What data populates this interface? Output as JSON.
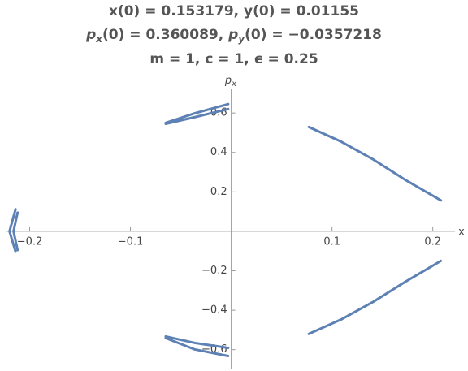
{
  "chart_data": {
    "type": "line",
    "title": [
      [
        "x(0) = 0.153179, y(0) = 0.01155"
      ],
      [
        "p",
        "x",
        "(0) = 0.360089, ",
        "p",
        "y",
        "(0) = −0.0357218"
      ],
      [
        "m = 1, c = 1, ϵ = 0.25"
      ]
    ],
    "x_label": "x",
    "y_label": [
      "p",
      "x"
    ],
    "xlim": [
      -0.223,
      0.222
    ],
    "ylim": [
      -0.7,
      0.72
    ],
    "xticks": [
      {
        "value": -0.2,
        "label": "−0.2"
      },
      {
        "value": -0.1,
        "label": "−0.1"
      },
      0.1,
      0.2
    ],
    "yticks": [
      {
        "value": -0.6,
        "label": "−0.6"
      },
      {
        "value": -0.4,
        "label": "−0.4"
      },
      {
        "value": -0.2,
        "label": "−0.2"
      },
      0.2,
      0.4,
      0.6
    ],
    "color": "#5e81b5",
    "series": [
      {
        "x": [
          0.077,
          0.109,
          0.141,
          0.173,
          0.208
        ],
        "values": [
          0.529,
          0.455,
          0.364,
          0.26,
          0.157
        ]
      },
      {
        "x": [
          0.077,
          0.109,
          0.141,
          0.173,
          0.208
        ],
        "values": [
          -0.52,
          -0.447,
          -0.357,
          -0.255,
          -0.15
        ]
      },
      {
        "x": [
          -0.065,
          -0.036,
          -0.003
        ],
        "values": [
          0.55,
          0.599,
          0.645
        ]
      },
      {
        "x": [
          -0.065,
          -0.036,
          -0.003
        ],
        "values": [
          0.545,
          0.579,
          0.62
        ]
      },
      {
        "x": [
          -0.065,
          -0.036,
          -0.003
        ],
        "values": [
          -0.533,
          -0.566,
          -0.591
        ]
      },
      {
        "x": [
          -0.065,
          -0.036,
          -0.003
        ],
        "values": [
          -0.541,
          -0.599,
          -0.632
        ]
      },
      {
        "x": [
          -0.214,
          -0.22,
          -0.214
        ],
        "values": [
          0.112,
          0,
          -0.103
        ]
      },
      {
        "x": [
          -0.212,
          -0.216,
          -0.212
        ],
        "values": [
          0.095,
          0,
          -0.095
        ]
      }
    ]
  }
}
